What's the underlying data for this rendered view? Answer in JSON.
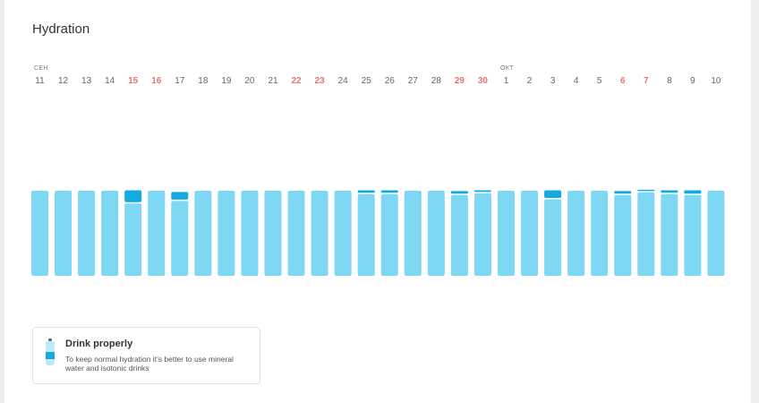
{
  "title": "Hydration",
  "colors": {
    "bar": "#7fd8f3",
    "bar_top": "#12aae0",
    "weekend": "#e57373",
    "day": "#666666"
  },
  "months": [
    {
      "label": "сен",
      "day_index": 0
    },
    {
      "label": "окт",
      "day_index": 20
    }
  ],
  "chart_data": {
    "type": "bar",
    "categories": [
      "11",
      "12",
      "13",
      "14",
      "15",
      "16",
      "17",
      "18",
      "19",
      "20",
      "21",
      "22",
      "23",
      "24",
      "25",
      "26",
      "27",
      "28",
      "29",
      "30",
      "1",
      "2",
      "3",
      "4",
      "5",
      "6",
      "7",
      "8",
      "9",
      "10"
    ],
    "weekend": [
      false,
      false,
      false,
      false,
      true,
      true,
      false,
      false,
      false,
      false,
      false,
      true,
      true,
      false,
      false,
      false,
      false,
      false,
      true,
      true,
      false,
      false,
      false,
      false,
      false,
      true,
      true,
      false,
      false,
      false
    ],
    "series": [
      {
        "values": [
          1.0,
          1.0,
          1.0,
          1.0,
          0.85,
          1.0,
          0.88,
          1.0,
          1.0,
          1.0,
          1.0,
          1.0,
          1.0,
          1.0,
          0.96,
          0.96,
          1.0,
          1.0,
          0.95,
          0.97,
          1.0,
          1.0,
          0.9,
          1.0,
          1.0,
          0.95,
          0.98,
          0.96,
          0.95,
          1.0
        ]
      },
      {
        "values": [
          0,
          0,
          0,
          0,
          0.14,
          0,
          0.09,
          0,
          0,
          0,
          0,
          0,
          0,
          0,
          0.03,
          0.03,
          0,
          0,
          0.03,
          0.02,
          0,
          0,
          0.09,
          0,
          0,
          0.03,
          0.01,
          0.03,
          0.04,
          0
        ]
      }
    ],
    "title": "",
    "xlabel": "",
    "ylabel": "",
    "grid": false,
    "legend": "none"
  },
  "tip": {
    "icon": "water-bottle-icon",
    "title": "Drink properly",
    "text": "To keep normal hydration it’s better to use mineral water and isotonic drinks"
  }
}
